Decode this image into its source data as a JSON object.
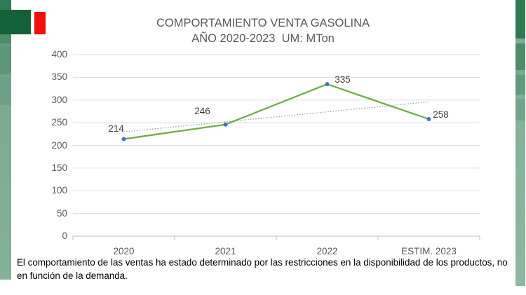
{
  "slide": {
    "note": "El comportamiento de las ventas ha estado determinado por las restricciones en la disponibilidad de los productos, no en función de la demanda."
  },
  "chart_data": {
    "type": "line",
    "title": "COMPORTAMIENTO VENTA GASOLINA",
    "subtitle": "AÑO 2020-2023  UM: MTon",
    "categories": [
      "2020",
      "2021",
      "2022",
      "ESTIM. 2023"
    ],
    "values": [
      214,
      246,
      335,
      258
    ],
    "data_labels": [
      "214",
      "246",
      "335",
      "258"
    ],
    "ylim": [
      0,
      400
    ],
    "ytick_step": 50,
    "grid": true,
    "legend": "none",
    "trendline": {
      "type": "linear",
      "style": "dotted",
      "y_start": 230,
      "y_end": 296
    },
    "colors": {
      "line": "#70AD47",
      "marker": "#4472C4",
      "trendline": "#8f9a8b",
      "gridline": "#dcdcdc",
      "axis": "#bfbfbf",
      "axis_text": "#595959",
      "data_label_text": "#3f3f3f",
      "title_text": "#595959",
      "accent_green": "#156239",
      "accent_red": "#f10e0e"
    }
  }
}
